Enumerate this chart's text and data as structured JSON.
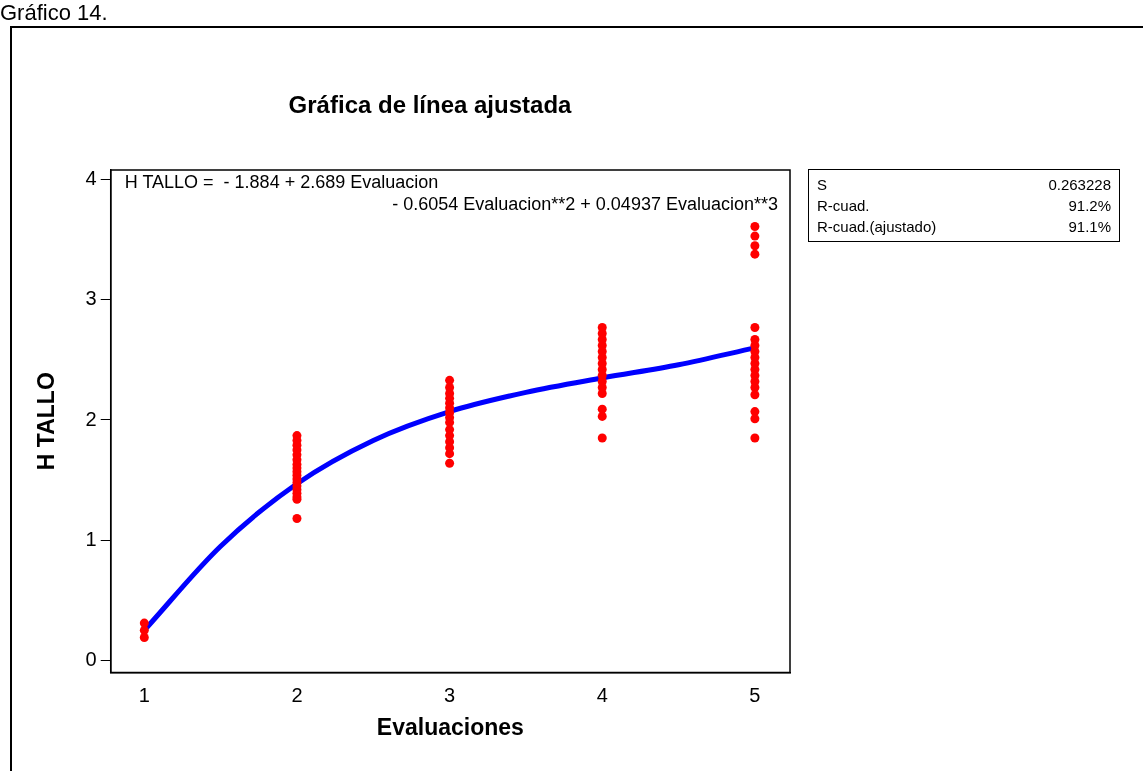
{
  "chart_data": {
    "type": "scatter",
    "title": "Gráfica de línea ajustada",
    "xlabel": "Evaluaciones",
    "ylabel": "H TALLO",
    "xlim": [
      0.78,
      5.23
    ],
    "xticks": [
      1,
      2,
      3,
      4,
      5
    ],
    "ylim": [
      -0.1,
      4.08
    ],
    "yticks": [
      0,
      1,
      2,
      3,
      4
    ],
    "grid": false,
    "legend": false,
    "marker": "circle",
    "series": [
      {
        "color": "#ff0000",
        "x": [
          1,
          1,
          1,
          2,
          2,
          2,
          2,
          2,
          2,
          2,
          2,
          2,
          2,
          2,
          2,
          2,
          2,
          2,
          2,
          2,
          2,
          3,
          3,
          3,
          3,
          3,
          3,
          3,
          3,
          3,
          3,
          3,
          3,
          3,
          3,
          3,
          4,
          4,
          4,
          4,
          4,
          4,
          4,
          4,
          4,
          4,
          4,
          4,
          4,
          4,
          4,
          5,
          5,
          5,
          5,
          5,
          5,
          5,
          5,
          5,
          5,
          5,
          5,
          5,
          5,
          5,
          5,
          5,
          5
        ],
        "values": [
          0.19,
          0.25,
          0.31,
          1.87,
          1.83,
          1.79,
          1.75,
          1.71,
          1.67,
          1.63,
          1.6,
          1.57,
          1.54,
          1.51,
          1.48,
          1.45,
          1.42,
          1.39,
          1.36,
          1.34,
          1.18,
          2.33,
          2.27,
          2.22,
          2.18,
          2.14,
          2.1,
          2.06,
          2.02,
          1.98,
          1.92,
          1.87,
          1.82,
          1.77,
          1.72,
          1.64,
          2.77,
          2.72,
          2.67,
          2.62,
          2.57,
          2.52,
          2.47,
          2.42,
          2.37,
          2.32,
          2.27,
          2.22,
          2.09,
          2.03,
          1.85,
          3.61,
          3.53,
          3.45,
          3.38,
          2.77,
          2.67,
          2.62,
          2.57,
          2.52,
          2.47,
          2.42,
          2.37,
          2.32,
          2.27,
          2.21,
          2.07,
          2.01,
          1.85
        ]
      },
      {
        "type": "line",
        "color": "#0000ff",
        "marker": "none",
        "x": [
          1,
          1.5,
          2,
          2.5,
          3,
          3.5,
          4,
          4.5,
          5
        ],
        "values": [
          0.25,
          0.95,
          1.47,
          1.83,
          2.07,
          2.23,
          2.35,
          2.46,
          2.6
        ]
      }
    ],
    "annotations": [
      "Gráfico 14.",
      "H TALLO =  - 1.884 + 2.689 Evaluacion",
      "- 0.6054 Evaluacion**2 + 0.04937 Evaluacion**3",
      "S",
      "0.263228",
      "R-cuad.",
      "91.2%",
      "R-cuad.(ajustado)",
      "91.1%"
    ]
  }
}
